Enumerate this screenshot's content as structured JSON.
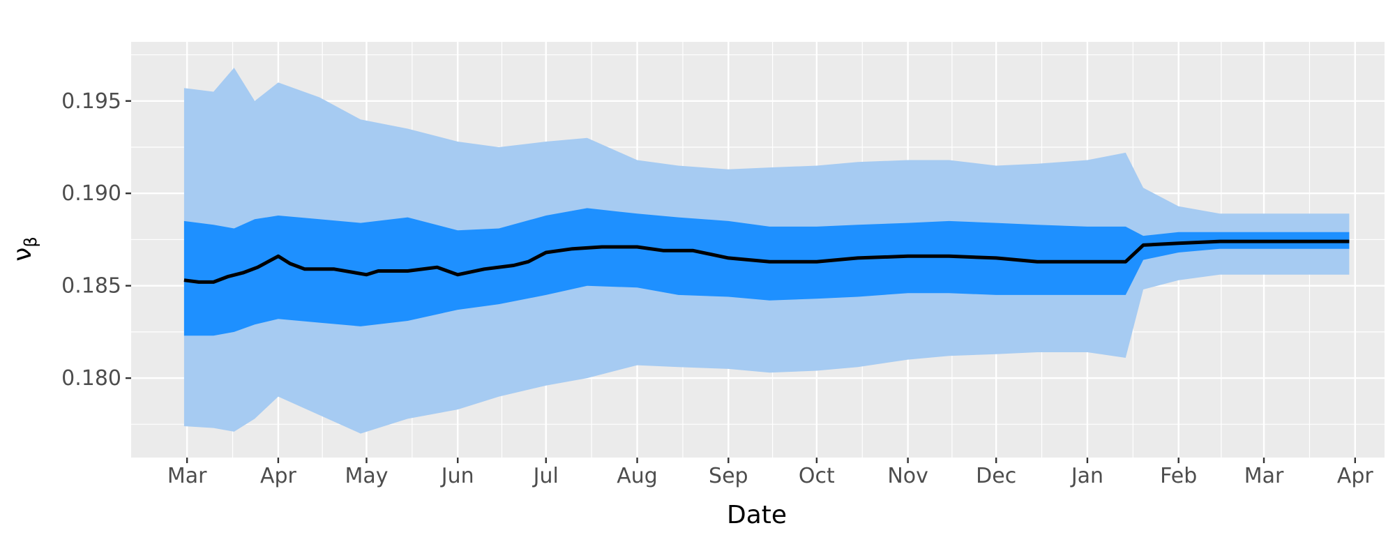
{
  "chart_data": {
    "type": "area",
    "xlabel": "Date",
    "ylabel": "ν",
    "ylabel_subscript": "β",
    "x_tick_labels": [
      "Mar",
      "Apr",
      "May",
      "Jun",
      "Jul",
      "Aug",
      "Sep",
      "Oct",
      "Nov",
      "Dec",
      "Jan",
      "Feb",
      "Mar",
      "Apr"
    ],
    "x_tick_dates": [
      "2023-03-01",
      "2023-04-01",
      "2023-05-01",
      "2023-06-01",
      "2023-07-01",
      "2023-08-01",
      "2023-09-01",
      "2023-10-01",
      "2023-11-01",
      "2023-12-01",
      "2024-01-01",
      "2024-02-01",
      "2024-03-01",
      "2024-04-01"
    ],
    "xlim": [
      "2023-02-10",
      "2024-04-11"
    ],
    "y_ticks": [
      0.18,
      0.185,
      0.19,
      0.195
    ],
    "y_tick_labels": [
      "0.180",
      "0.185",
      "0.190",
      "0.195"
    ],
    "ylim": [
      0.1757,
      0.1982
    ],
    "grid": true,
    "colors": {
      "panel_background": "#ebebeb",
      "grid_major": "#ffffff",
      "outer_band": "#a6cbf2",
      "inner_band": "#1e90ff",
      "median_line": "#000000",
      "tick_text": "#4d4d4d"
    },
    "series": [
      {
        "role": "outer-band",
        "x": [
          "2023-02-28",
          "2023-03-10",
          "2023-03-17",
          "2023-03-24",
          "2023-04-01",
          "2023-04-15",
          "2023-04-29",
          "2023-05-15",
          "2023-06-01",
          "2023-06-15",
          "2023-07-01",
          "2023-07-15",
          "2023-08-01",
          "2023-08-15",
          "2023-09-01",
          "2023-09-15",
          "2023-10-01",
          "2023-10-15",
          "2023-11-01",
          "2023-11-15",
          "2023-12-01",
          "2023-12-15",
          "2024-01-01",
          "2024-01-14",
          "2024-01-20",
          "2024-02-01",
          "2024-02-15",
          "2024-03-01",
          "2024-03-15",
          "2024-03-30"
        ],
        "upper": [
          0.1957,
          0.1955,
          0.1968,
          0.195,
          0.196,
          0.1952,
          0.194,
          0.1935,
          0.1928,
          0.1925,
          0.1928,
          0.193,
          0.1918,
          0.1915,
          0.1913,
          0.1914,
          0.1915,
          0.1917,
          0.1918,
          0.1918,
          0.1915,
          0.1916,
          0.1918,
          0.1922,
          0.1903,
          0.1893,
          0.1889,
          0.1889,
          0.1889,
          0.1889
        ],
        "lower": [
          0.1774,
          0.1773,
          0.1771,
          0.1778,
          0.179,
          0.178,
          0.177,
          0.1778,
          0.1783,
          0.179,
          0.1796,
          0.18,
          0.1807,
          0.1806,
          0.1805,
          0.1803,
          0.1804,
          0.1806,
          0.181,
          0.1812,
          0.1813,
          0.1814,
          0.1814,
          0.1811,
          0.1848,
          0.1853,
          0.1856,
          0.1856,
          0.1856,
          0.1856
        ]
      },
      {
        "role": "inner-band",
        "x": [
          "2023-02-28",
          "2023-03-10",
          "2023-03-17",
          "2023-03-24",
          "2023-04-01",
          "2023-04-15",
          "2023-04-29",
          "2023-05-15",
          "2023-06-01",
          "2023-06-15",
          "2023-07-01",
          "2023-07-15",
          "2023-08-01",
          "2023-08-15",
          "2023-09-01",
          "2023-09-15",
          "2023-10-01",
          "2023-10-15",
          "2023-11-01",
          "2023-11-15",
          "2023-12-01",
          "2023-12-15",
          "2024-01-01",
          "2024-01-14",
          "2024-01-20",
          "2024-02-01",
          "2024-02-15",
          "2024-03-01",
          "2024-03-15",
          "2024-03-30"
        ],
        "upper": [
          0.1885,
          0.1883,
          0.1881,
          0.1886,
          0.1888,
          0.1886,
          0.1884,
          0.1887,
          0.188,
          0.1881,
          0.1888,
          0.1892,
          0.1889,
          0.1887,
          0.1885,
          0.1882,
          0.1882,
          0.1883,
          0.1884,
          0.1885,
          0.1884,
          0.1883,
          0.1882,
          0.1882,
          0.1877,
          0.1879,
          0.1879,
          0.1879,
          0.1879,
          0.1879
        ],
        "lower": [
          0.1823,
          0.1823,
          0.1825,
          0.1829,
          0.1832,
          0.183,
          0.1828,
          0.1831,
          0.1837,
          0.184,
          0.1845,
          0.185,
          0.1849,
          0.1845,
          0.1844,
          0.1842,
          0.1843,
          0.1844,
          0.1846,
          0.1846,
          0.1845,
          0.1845,
          0.1845,
          0.1845,
          0.1864,
          0.1868,
          0.187,
          0.187,
          0.187,
          0.187
        ]
      },
      {
        "role": "median-line",
        "x": [
          "2023-02-28",
          "2023-03-05",
          "2023-03-10",
          "2023-03-15",
          "2023-03-20",
          "2023-03-25",
          "2023-04-01",
          "2023-04-05",
          "2023-04-10",
          "2023-04-20",
          "2023-05-01",
          "2023-05-05",
          "2023-05-15",
          "2023-05-25",
          "2023-06-01",
          "2023-06-10",
          "2023-06-20",
          "2023-06-25",
          "2023-07-01",
          "2023-07-10",
          "2023-07-20",
          "2023-08-01",
          "2023-08-10",
          "2023-08-20",
          "2023-09-01",
          "2023-09-15",
          "2023-10-01",
          "2023-10-15",
          "2023-11-01",
          "2023-11-15",
          "2023-12-01",
          "2023-12-15",
          "2024-01-01",
          "2024-01-14",
          "2024-01-20",
          "2024-02-01",
          "2024-02-15",
          "2024-03-01",
          "2024-03-15",
          "2024-03-30"
        ],
        "y": [
          0.1853,
          0.1852,
          0.1852,
          0.1855,
          0.1857,
          0.186,
          0.1866,
          0.1862,
          0.1859,
          0.1859,
          0.1856,
          0.1858,
          0.1858,
          0.186,
          0.1856,
          0.1859,
          0.1861,
          0.1863,
          0.1868,
          0.187,
          0.1871,
          0.1871,
          0.1869,
          0.1869,
          0.1865,
          0.1863,
          0.1863,
          0.1865,
          0.1866,
          0.1866,
          0.1865,
          0.1863,
          0.1863,
          0.1863,
          0.1872,
          0.1873,
          0.1874,
          0.1874,
          0.1874,
          0.1874
        ]
      }
    ]
  }
}
